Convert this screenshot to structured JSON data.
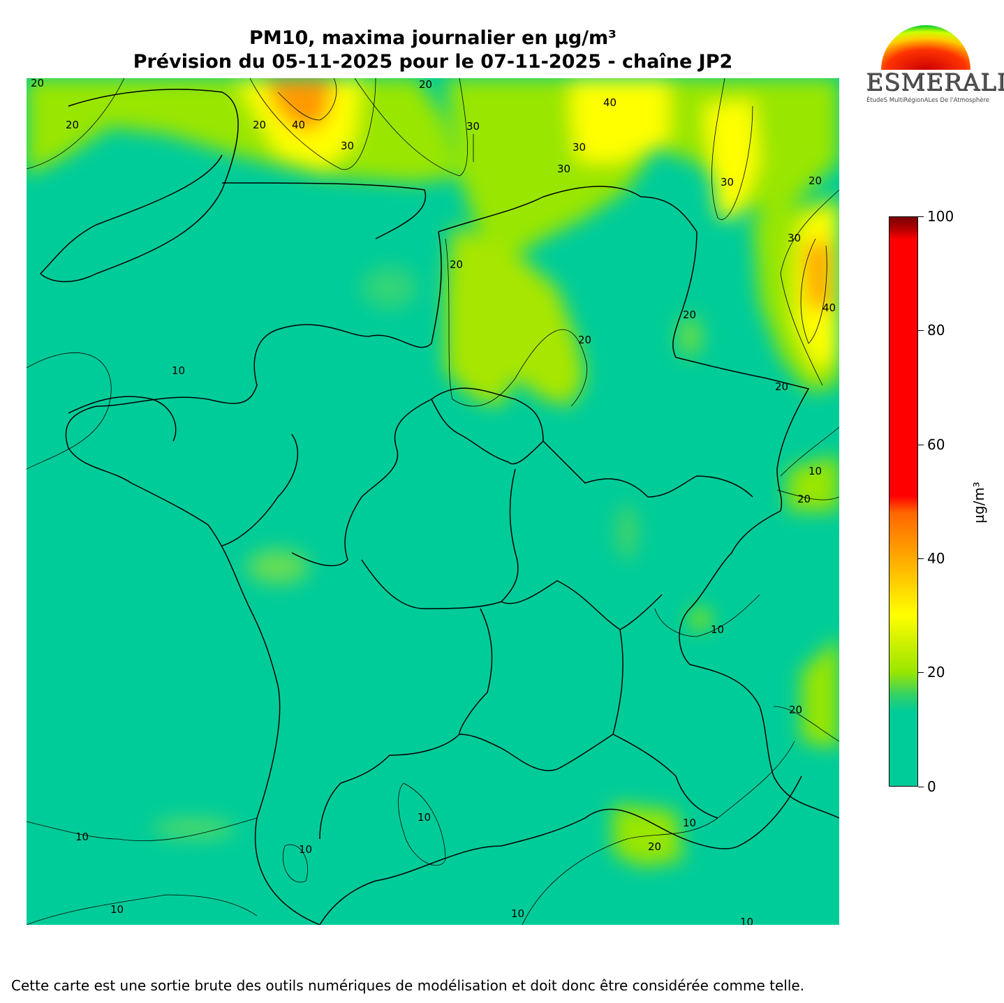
{
  "title": {
    "line1": "PM10, maxima journalier en µg/m³",
    "line2": "Prévision du 05-11-2025 pour le 07-11-2025 - chaîne JP2"
  },
  "logo": {
    "word": "ESMERALDA",
    "subtitle": "ÉtudeS MultiRégionALes De l'Atmosphère"
  },
  "colorbar": {
    "unit": "µg/m³",
    "min": 0,
    "max": 100,
    "ticks": [
      "0",
      "20",
      "40",
      "60",
      "80",
      "100"
    ],
    "colors": [
      "#00cc99",
      "#99e600",
      "#ffff00",
      "#ff9900",
      "#ff0000",
      "#7a0000"
    ]
  },
  "map": {
    "background_color": "#00cc99",
    "contour_levels": [
      "10",
      "20",
      "30",
      "40"
    ]
  },
  "disclaimer": "Cette carte est une sortie brute des outils numériques de modélisation et doit donc être considérée comme telle."
}
